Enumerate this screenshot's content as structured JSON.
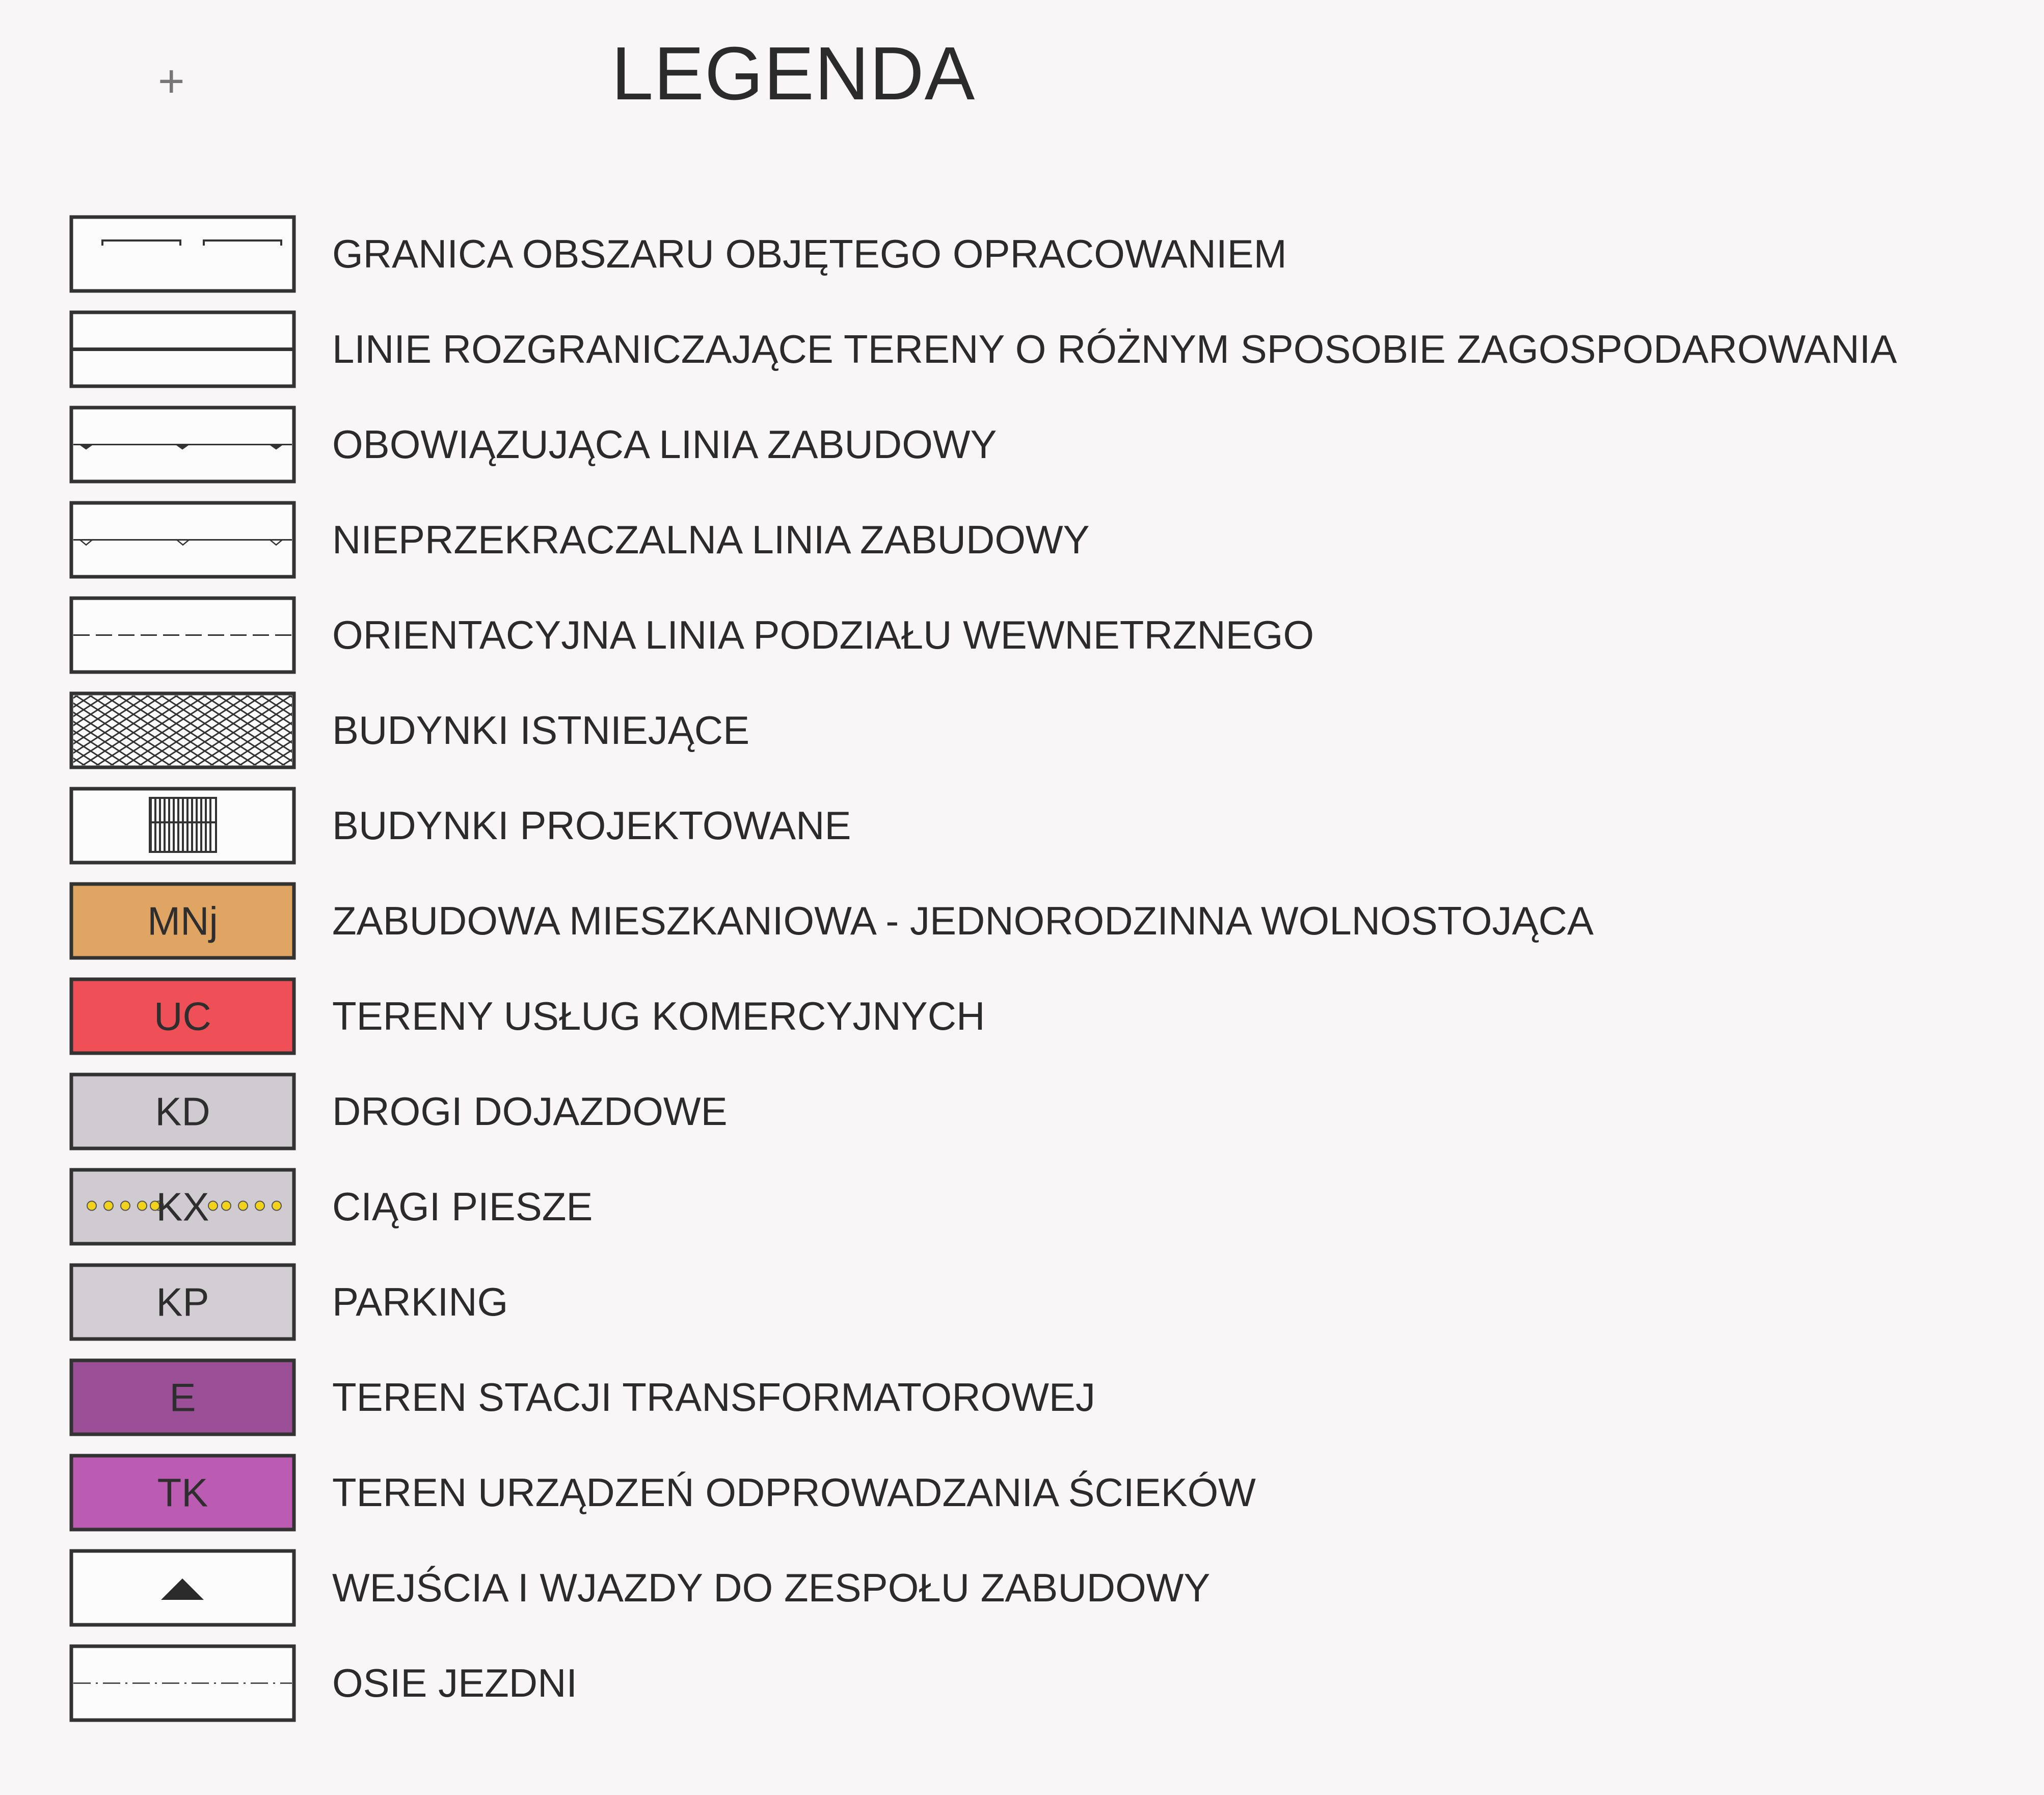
{
  "title": "LEGENDA",
  "items": [
    {
      "symbol": "boundary-line",
      "code": "",
      "label": "GRANICA OBSZARU OBJĘTEGO OPRACOWANIEM"
    },
    {
      "symbol": "solid-line",
      "code": "",
      "label": "LINIE ROZGRANICZAJĄCE TERENY O RÓŻNYM SPOSOBIE ZAGOSPODAROWANIA"
    },
    {
      "symbol": "filled-triangle-line",
      "code": "",
      "label": "OBOWIĄZUJĄCA LINIA ZABUDOWY"
    },
    {
      "symbol": "open-triangle-line",
      "code": "",
      "label": "NIEPRZEKRACZALNA LINIA ZABUDOWY"
    },
    {
      "symbol": "dashed-line",
      "code": "",
      "label": "ORIENTACYJNA LINIA PODZIAŁU WEWNETRZNEGO"
    },
    {
      "symbol": "crosshatch",
      "code": "",
      "label": "BUDYNKI ISTNIEJĄCE"
    },
    {
      "symbol": "projected-building",
      "code": "",
      "label": "BUDYNKI PROJEKTOWANE"
    },
    {
      "symbol": "fill",
      "code": "MNj",
      "color": "#e0a463",
      "label": "ZABUDOWA MIESZKANIOWA - JEDNORODZINNA WOLNOSTOJĄCA"
    },
    {
      "symbol": "fill",
      "code": "UC",
      "color": "#ef5058",
      "label": "TERENY USŁUG KOMERCYJNYCH"
    },
    {
      "symbol": "fill",
      "code": "KD",
      "color": "#cfcbd0",
      "label": "DROGI DOJAZDOWE"
    },
    {
      "symbol": "fill-dots",
      "code": "KX",
      "color": "#cfcbd0",
      "dot_color": "#f2d21a",
      "label": "CIĄGI PIESZE"
    },
    {
      "symbol": "fill",
      "code": "KP",
      "color": "#d2ced3",
      "label": "PARKING"
    },
    {
      "symbol": "fill",
      "code": "E",
      "color": "#9a4f96",
      "label": "TEREN STACJI TRANSFORMATOROWEJ"
    },
    {
      "symbol": "fill",
      "code": "TK",
      "color": "#bb5bb2",
      "label": "TEREN URZĄDZEŃ ODPROWADZANIA ŚCIEKÓW"
    },
    {
      "symbol": "triangle",
      "code": "",
      "label": "WEJŚCIA I WJAZDY DO ZESPOŁU ZABUDOWY"
    },
    {
      "symbol": "dash-dot-line",
      "code": "",
      "label": "OSIE JEZDNI"
    }
  ]
}
